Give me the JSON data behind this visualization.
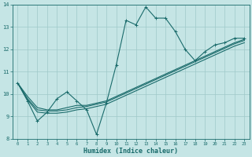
{
  "xlabel": "Humidex (Indice chaleur)",
  "xlim": [
    -0.5,
    23.5
  ],
  "ylim": [
    8,
    14
  ],
  "xticks": [
    0,
    1,
    2,
    3,
    4,
    5,
    6,
    7,
    8,
    9,
    10,
    11,
    12,
    13,
    14,
    15,
    16,
    17,
    18,
    19,
    20,
    21,
    22,
    23
  ],
  "yticks": [
    8,
    9,
    10,
    11,
    12,
    13,
    14
  ],
  "bg_color": "#c5e5e5",
  "grid_color": "#9fc9c9",
  "line_color": "#1a6b6b",
  "main_x": [
    0,
    1,
    2,
    3,
    4,
    5,
    6,
    7,
    8,
    9,
    10,
    11,
    12,
    13,
    14,
    15,
    16,
    17,
    18,
    19,
    20,
    21,
    22,
    23
  ],
  "main_y": [
    10.5,
    9.7,
    8.8,
    9.2,
    9.8,
    10.1,
    9.7,
    9.3,
    8.2,
    9.6,
    11.3,
    13.3,
    13.1,
    13.9,
    13.4,
    13.4,
    12.8,
    12.0,
    11.5,
    11.9,
    12.2,
    12.3,
    12.5,
    12.5
  ],
  "trend1_x": [
    0,
    1,
    2,
    3,
    4,
    5,
    6,
    7,
    8,
    9,
    10,
    11,
    12,
    13,
    14,
    15,
    16,
    17,
    18,
    19,
    20,
    21,
    22,
    23
  ],
  "trend1_y": [
    10.5,
    9.9,
    9.4,
    9.3,
    9.3,
    9.4,
    9.5,
    9.5,
    9.6,
    9.7,
    9.9,
    10.1,
    10.3,
    10.5,
    10.7,
    10.9,
    11.1,
    11.3,
    11.5,
    11.7,
    11.9,
    12.1,
    12.3,
    12.45
  ],
  "trend2_x": [
    0,
    1,
    2,
    3,
    4,
    5,
    6,
    7,
    8,
    9,
    10,
    11,
    12,
    13,
    14,
    15,
    16,
    17,
    18,
    19,
    20,
    21,
    22,
    23
  ],
  "trend2_y": [
    10.5,
    9.8,
    9.3,
    9.25,
    9.25,
    9.3,
    9.4,
    9.45,
    9.55,
    9.65,
    9.85,
    10.05,
    10.25,
    10.45,
    10.65,
    10.85,
    11.05,
    11.25,
    11.45,
    11.65,
    11.85,
    12.05,
    12.25,
    12.4
  ],
  "trend3_x": [
    0,
    1,
    2,
    3,
    4,
    5,
    6,
    7,
    8,
    9,
    10,
    11,
    12,
    13,
    14,
    15,
    16,
    17,
    18,
    19,
    20,
    21,
    22,
    23
  ],
  "trend3_y": [
    10.5,
    9.75,
    9.2,
    9.15,
    9.15,
    9.2,
    9.3,
    9.35,
    9.45,
    9.55,
    9.75,
    9.95,
    10.15,
    10.35,
    10.55,
    10.75,
    10.95,
    11.15,
    11.35,
    11.55,
    11.75,
    11.95,
    12.15,
    12.3
  ]
}
